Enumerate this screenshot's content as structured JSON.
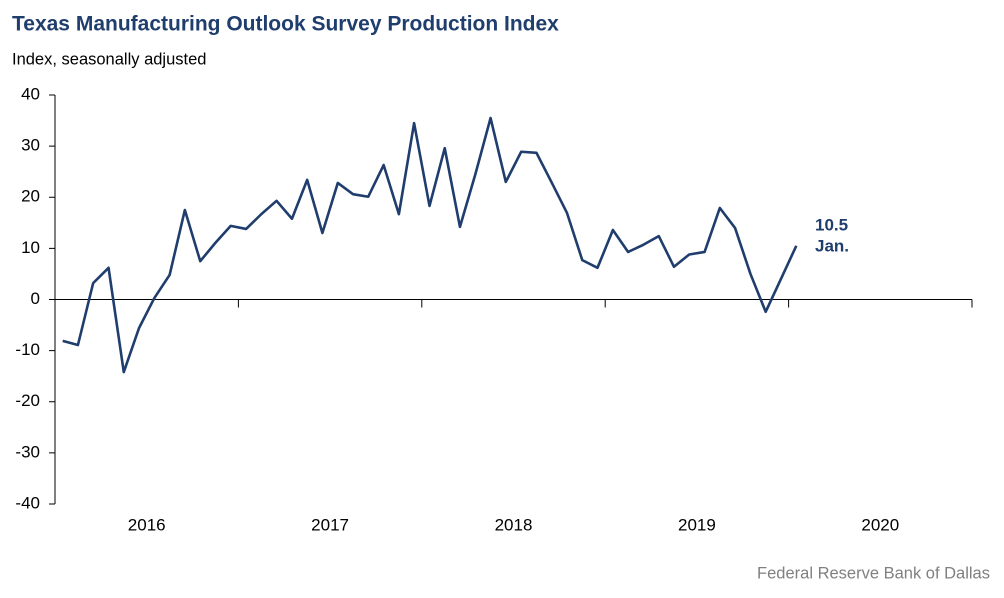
{
  "chart_data": {
    "type": "line",
    "title": "Texas Manufacturing Outlook Survey Production Index",
    "subtitle": "Index, seasonally adjusted",
    "source": "Federal Reserve Bank of Dallas",
    "annotations": [
      "10.5",
      "Jan."
    ],
    "x": [
      2016.042,
      2016.125,
      2016.208,
      2016.292,
      2016.375,
      2016.458,
      2016.542,
      2016.625,
      2016.708,
      2016.792,
      2016.875,
      2016.958,
      2017.042,
      2017.125,
      2017.208,
      2017.292,
      2017.375,
      2017.458,
      2017.542,
      2017.625,
      2017.708,
      2017.792,
      2017.875,
      2017.958,
      2018.042,
      2018.125,
      2018.208,
      2018.292,
      2018.375,
      2018.458,
      2018.542,
      2018.625,
      2018.708,
      2018.792,
      2018.875,
      2018.958,
      2019.042,
      2019.125,
      2019.208,
      2019.292,
      2019.375,
      2019.458,
      2019.542,
      2019.625,
      2019.708,
      2019.792,
      2019.875,
      2019.958,
      2020.042
    ],
    "series": [
      {
        "name": "Production Index",
        "color": "#1f3d6d",
        "values": [
          -8.1,
          -8.9,
          3.2,
          6.2,
          -14.2,
          -5.6,
          0.3,
          4.8,
          17.5,
          7.5,
          11.1,
          14.4,
          13.8,
          16.7,
          19.3,
          15.8,
          23.4,
          13.0,
          22.8,
          20.6,
          20.1,
          26.3,
          16.7,
          34.5,
          18.3,
          29.6,
          14.2,
          24.5,
          35.5,
          23.0,
          28.9,
          28.7,
          22.9,
          16.9,
          7.7,
          6.2,
          13.6,
          9.3,
          10.7,
          12.4,
          6.4,
          8.8,
          9.3,
          17.9,
          14.0,
          5.0,
          -2.4,
          4.0,
          10.5
        ]
      }
    ],
    "xlim": [
      2016,
      2021
    ],
    "xticks": [
      {
        "value": 2016.5,
        "label": "2016"
      },
      {
        "value": 2017.5,
        "label": "2017"
      },
      {
        "value": 2018.5,
        "label": "2018"
      },
      {
        "value": 2019.5,
        "label": "2019"
      },
      {
        "value": 2020.5,
        "label": "2020"
      }
    ],
    "ylim": [
      -40,
      40
    ],
    "yticks": [
      -40,
      -30,
      -20,
      -10,
      0,
      10,
      20,
      30,
      40
    ],
    "grid": false
  }
}
